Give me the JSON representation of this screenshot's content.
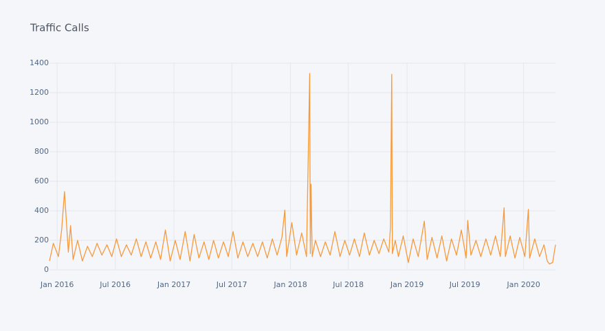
{
  "chart_data": {
    "type": "line",
    "title": "Traffic Calls",
    "x": [
      "2015-12-08",
      "2015-12-20",
      "2016-01-05",
      "2016-01-15",
      "2016-01-24",
      "2016-02-05",
      "2016-02-12",
      "2016-02-20",
      "2016-03-05",
      "2016-03-20",
      "2016-04-05",
      "2016-04-20",
      "2016-05-05",
      "2016-05-20",
      "2016-06-05",
      "2016-06-20",
      "2016-07-05",
      "2016-07-20",
      "2016-08-05",
      "2016-08-20",
      "2016-09-05",
      "2016-09-20",
      "2016-10-05",
      "2016-10-20",
      "2016-11-05",
      "2016-11-20",
      "2016-12-05",
      "2016-12-20",
      "2017-01-05",
      "2017-01-20",
      "2017-02-05",
      "2017-02-20",
      "2017-03-05",
      "2017-03-20",
      "2017-04-05",
      "2017-04-20",
      "2017-05-05",
      "2017-05-20",
      "2017-06-05",
      "2017-06-20",
      "2017-07-05",
      "2017-07-20",
      "2017-08-05",
      "2017-08-20",
      "2017-09-05",
      "2017-09-20",
      "2017-10-05",
      "2017-10-20",
      "2017-11-05",
      "2017-11-20",
      "2017-12-05",
      "2017-12-14",
      "2017-12-20",
      "2018-01-05",
      "2018-01-20",
      "2018-02-05",
      "2018-02-20",
      "2018-03-02",
      "2018-03-04",
      "2018-03-06",
      "2018-03-10",
      "2018-03-20",
      "2018-04-05",
      "2018-04-20",
      "2018-05-05",
      "2018-05-20",
      "2018-06-05",
      "2018-06-20",
      "2018-07-05",
      "2018-07-20",
      "2018-08-05",
      "2018-08-20",
      "2018-09-05",
      "2018-09-20",
      "2018-10-05",
      "2018-10-20",
      "2018-11-05",
      "2018-11-10",
      "2018-11-14",
      "2018-11-16",
      "2018-11-25",
      "2018-12-05",
      "2018-12-20",
      "2019-01-05",
      "2019-01-20",
      "2019-02-05",
      "2019-02-24",
      "2019-03-05",
      "2019-03-20",
      "2019-04-05",
      "2019-04-20",
      "2019-05-05",
      "2019-05-20",
      "2019-06-05",
      "2019-06-20",
      "2019-07-05",
      "2019-07-10",
      "2019-07-20",
      "2019-08-05",
      "2019-08-20",
      "2019-09-05",
      "2019-09-20",
      "2019-10-05",
      "2019-10-20",
      "2019-11-01",
      "2019-11-05",
      "2019-11-20",
      "2019-12-05",
      "2019-12-20",
      "2020-01-05",
      "2020-01-16",
      "2020-01-20",
      "2020-02-05",
      "2020-02-20",
      "2020-03-05",
      "2020-03-15",
      "2020-03-22",
      "2020-04-01",
      "2020-04-10"
    ],
    "series": [
      {
        "color": "#f7993a",
        "values": [
          60,
          180,
          90,
          270,
          530,
          120,
          300,
          70,
          200,
          60,
          160,
          90,
          180,
          100,
          170,
          90,
          210,
          90,
          170,
          100,
          210,
          90,
          190,
          80,
          190,
          70,
          270,
          60,
          200,
          70,
          260,
          60,
          240,
          80,
          190,
          70,
          200,
          80,
          190,
          90,
          260,
          80,
          190,
          90,
          180,
          90,
          190,
          80,
          210,
          100,
          220,
          405,
          90,
          320,
          100,
          250,
          90,
          1330,
          110,
          580,
          90,
          200,
          90,
          190,
          100,
          260,
          90,
          200,
          100,
          210,
          90,
          250,
          100,
          200,
          110,
          210,
          120,
          290,
          1325,
          110,
          200,
          90,
          230,
          50,
          210,
          90,
          330,
          70,
          220,
          80,
          230,
          60,
          210,
          100,
          270,
          80,
          335,
          100,
          200,
          90,
          210,
          100,
          230,
          90,
          420,
          90,
          230,
          80,
          220,
          90,
          410,
          80,
          210,
          90,
          170,
          60,
          40,
          50,
          170
        ]
      }
    ],
    "xlim": [
      "2015-12-08",
      "2020-04-10"
    ],
    "xticks": [
      {
        "value": "2016-01-01",
        "label": "Jan 2016"
      },
      {
        "value": "2016-07-01",
        "label": "Jul 2016"
      },
      {
        "value": "2017-01-01",
        "label": "Jan 2017"
      },
      {
        "value": "2017-07-01",
        "label": "Jul 2017"
      },
      {
        "value": "2018-01-01",
        "label": "Jan 2018"
      },
      {
        "value": "2018-07-01",
        "label": "Jul 2018"
      },
      {
        "value": "2019-01-01",
        "label": "Jan 2019"
      },
      {
        "value": "2019-07-01",
        "label": "Jul 2019"
      },
      {
        "value": "2020-01-01",
        "label": "Jan 2020"
      }
    ],
    "ylim": [
      0,
      1400
    ],
    "yticks": [
      0,
      200,
      400,
      600,
      800,
      1000,
      1200,
      1400
    ],
    "grid": true
  }
}
